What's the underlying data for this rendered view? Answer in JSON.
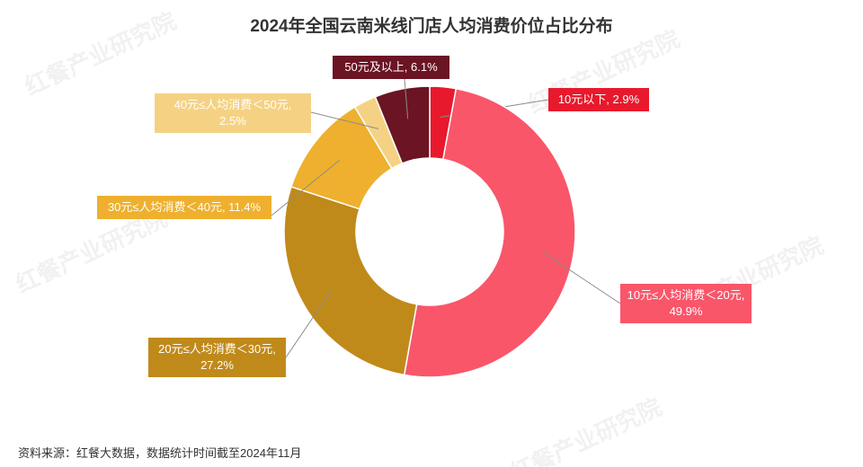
{
  "chart_data": {
    "type": "pie",
    "title": "2024年全国云南米线门店人均消费价位占比分布",
    "values": [
      2.9,
      49.9,
      27.2,
      11.4,
      2.5,
      6.1
    ],
    "value_labels": [
      "10元以下, 2.9%",
      "10元≤人均消费＜20元, 49.9%",
      "20元≤人均消费＜30元, 27.2%",
      "30元≤人均消费＜40元, 11.4%",
      "40元≤人均消费＜50元, 2.5%",
      "50元及以上, 6.1%"
    ],
    "colors": [
      "#e8192c",
      "#f9566a",
      "#c08a1a",
      "#eeb02e",
      "#f5d283",
      "#6b1424"
    ],
    "source": "资料来源：红餐大数据，数据统计时间截至2024年11月",
    "watermark": "红餐产业研究院"
  }
}
